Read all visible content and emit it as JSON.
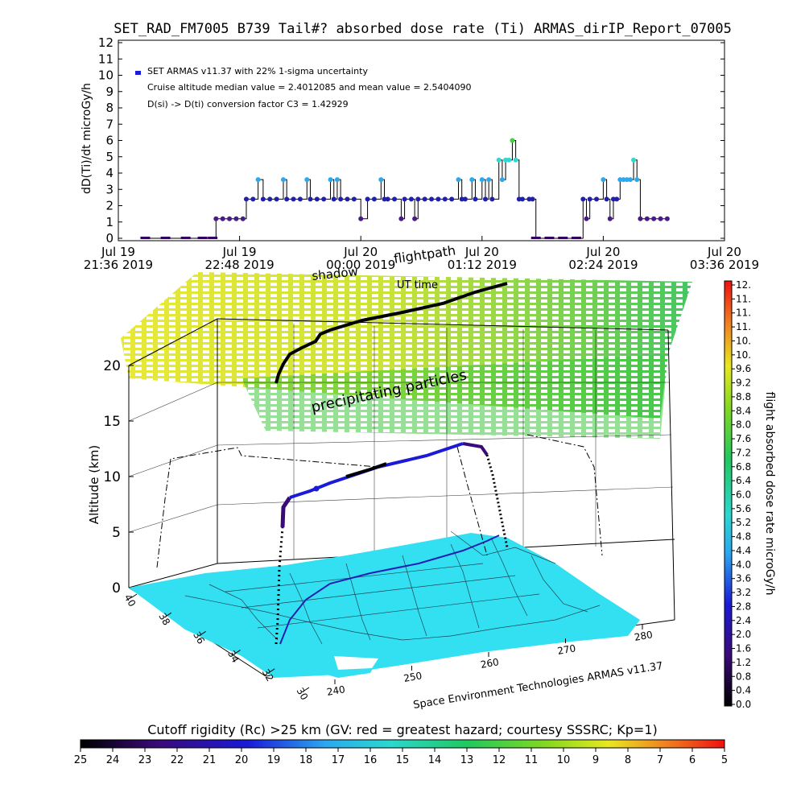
{
  "page_title": "SET_RAD_FM7005  B739 Tail#? absorbed dose rate (Ti) ARMAS_dirIP_Report_07005",
  "chart_data": [
    {
      "type": "line",
      "title": "SET_RAD_FM7005  B739 Tail#? absorbed dose rate (Ti) ARMAS_dirIP_Report_07005",
      "ylabel": "dD(Ti)/dt microGy/h",
      "ylim": [
        0,
        12
      ],
      "yticks": [
        "0",
        "1",
        "2",
        "3",
        "4",
        "5",
        "6",
        "7",
        "8",
        "9",
        "10",
        "11",
        "12"
      ],
      "xticks": [
        {
          "top": "Jul 19",
          "bottom": "21:36 2019"
        },
        {
          "top": "Jul 19",
          "bottom": "22:48 2019"
        },
        {
          "top": "Jul 20",
          "bottom": "00:00 2019"
        },
        {
          "top": "Jul 20",
          "bottom": "01:12 2019"
        },
        {
          "top": "Jul 20",
          "bottom": "02:24 2019"
        },
        {
          "top": "Jul 20",
          "bottom": "03:36 2019"
        }
      ],
      "xlim_minutes_from_2136": [
        0,
        360
      ],
      "annotations": [
        "SET ARMAS v11.37 with 22% 1-sigma uncertainty",
        "Cruise altitude median value = 2.4012085 and mean value = 2.5404090",
        "D(si) -> D(ti) conversion factor C3 = 1.42929"
      ],
      "series": [
        {
          "name": "SET ARMAS v11.37 with 22% 1-sigma uncertainty",
          "points": [
            [
              16,
              0
            ],
            [
              28,
              0
            ],
            [
              40,
              0
            ],
            [
              50,
              0
            ],
            [
              56,
              0
            ],
            [
              58,
              1.2
            ],
            [
              62,
              1.2
            ],
            [
              66,
              1.2
            ],
            [
              70,
              1.2
            ],
            [
              74,
              1.2
            ],
            [
              76,
              2.4
            ],
            [
              80,
              2.4
            ],
            [
              83,
              3.6
            ],
            [
              86,
              2.4
            ],
            [
              90,
              2.4
            ],
            [
              94,
              2.4
            ],
            [
              98,
              3.6
            ],
            [
              100,
              2.4
            ],
            [
              104,
              2.4
            ],
            [
              108,
              2.4
            ],
            [
              112,
              3.6
            ],
            [
              114,
              2.4
            ],
            [
              118,
              2.4
            ],
            [
              122,
              2.4
            ],
            [
              126,
              3.6
            ],
            [
              128,
              2.4
            ],
            [
              130,
              3.6
            ],
            [
              132,
              2.4
            ],
            [
              136,
              2.4
            ],
            [
              140,
              2.4
            ],
            [
              144,
              1.2
            ],
            [
              148,
              2.4
            ],
            [
              152,
              2.4
            ],
            [
              156,
              3.6
            ],
            [
              158,
              2.4
            ],
            [
              160,
              2.4
            ],
            [
              164,
              2.4
            ],
            [
              168,
              1.2
            ],
            [
              170,
              2.4
            ],
            [
              174,
              2.4
            ],
            [
              176,
              1.2
            ],
            [
              178,
              2.4
            ],
            [
              182,
              2.4
            ],
            [
              186,
              2.4
            ],
            [
              190,
              2.4
            ],
            [
              194,
              2.4
            ],
            [
              198,
              2.4
            ],
            [
              202,
              3.6
            ],
            [
              204,
              2.4
            ],
            [
              206,
              2.4
            ],
            [
              210,
              3.6
            ],
            [
              212,
              2.4
            ],
            [
              216,
              3.6
            ],
            [
              218,
              2.4
            ],
            [
              220,
              3.6
            ],
            [
              222,
              2.4
            ],
            [
              226,
              4.8
            ],
            [
              228,
              3.6
            ],
            [
              230,
              4.8
            ],
            [
              232,
              4.8
            ],
            [
              234,
              6.0
            ],
            [
              236,
              4.8
            ],
            [
              238,
              2.4
            ],
            [
              240,
              2.4
            ],
            [
              244,
              2.4
            ],
            [
              246,
              2.4
            ],
            [
              248,
              0
            ],
            [
              256,
              0
            ],
            [
              264,
              0
            ],
            [
              272,
              0
            ],
            [
              276,
              2.4
            ],
            [
              278,
              1.2
            ],
            [
              280,
              2.4
            ],
            [
              284,
              2.4
            ],
            [
              288,
              3.6
            ],
            [
              290,
              2.4
            ],
            [
              292,
              1.2
            ],
            [
              294,
              2.4
            ],
            [
              296,
              2.4
            ],
            [
              298,
              3.6
            ],
            [
              300,
              3.6
            ],
            [
              302,
              3.6
            ],
            [
              304,
              3.6
            ],
            [
              306,
              4.8
            ],
            [
              308,
              3.6
            ],
            [
              310,
              1.2
            ],
            [
              314,
              1.2
            ],
            [
              318,
              1.2
            ],
            [
              322,
              1.2
            ],
            [
              326,
              1.2
            ]
          ]
        }
      ]
    },
    {
      "type": "scatter",
      "title": "",
      "labels": [
        "shadow",
        "flightpath",
        "UT time",
        "precipitating particles",
        "Space Environment Technologies ARMAS v11.37"
      ],
      "zlabel": "Altitude (km)",
      "zticks": [
        "0",
        "5",
        "10",
        "15",
        "20"
      ],
      "lat_ticks": [
        "40",
        "38",
        "36",
        "34",
        "32",
        "30"
      ],
      "lon_ticks": [
        "240",
        "250",
        "260",
        "270",
        "280"
      ],
      "dose_colorbar": {
        "label": "flight absorbed dose rate microGy/h",
        "ticks": [
          "0.0",
          "0.4",
          "0.8",
          "1.2",
          "1.6",
          "2.0",
          "2.4",
          "2.8",
          "3.2",
          "3.6",
          "4.0",
          "4.4",
          "4.8",
          "5.2",
          "5.6",
          "6.0",
          "6.4",
          "6.8",
          "7.2",
          "7.6",
          "8.0",
          "8.4",
          "8.8",
          "9.2",
          "9.6",
          "10.",
          "10.",
          "11.",
          "11.",
          "11.",
          "12."
        ]
      },
      "rigidity_colorbar": {
        "label": "Cutoff rigidity (Rc) >25 km (GV: red = greatest hazard; courtesy SSSRC; Kp=1)",
        "ticks": [
          "25",
          "24",
          "23",
          "22",
          "21",
          "20",
          "19",
          "18",
          "17",
          "16",
          "15",
          "14",
          "13",
          "12",
          "11",
          "10",
          "9",
          "8",
          "7",
          "6",
          "5"
        ]
      },
      "colors": {
        "map_fill": "#33e0f2",
        "shade_low": "#e6e620",
        "shade_high": "#40c040",
        "flight_path": "#2020b0",
        "shadow_path": "#000000"
      }
    }
  ]
}
